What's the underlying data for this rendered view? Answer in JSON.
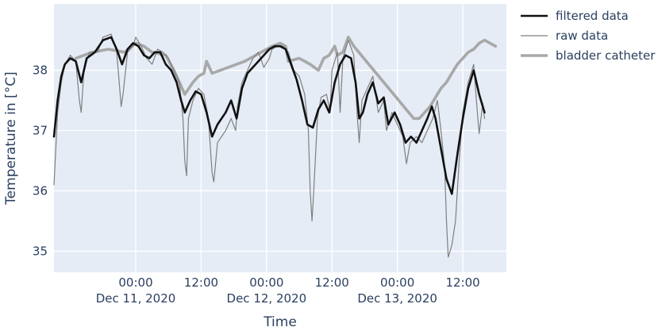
{
  "chart_data": {
    "type": "line",
    "xlabel": "Time",
    "ylabel": "Temperature in [°C]",
    "xlim": [
      "2020-12-10T09:00",
      "2020-12-13T20:00"
    ],
    "ylim": [
      34.65,
      39.1
    ],
    "grid": true,
    "legend_position": "right-top",
    "y_ticks": [
      35,
      36,
      37,
      38
    ],
    "x_ticks": [
      {
        "x": "2020-12-11T00:00",
        "time": "00:00",
        "date": "Dec 11, 2020"
      },
      {
        "x": "2020-12-11T12:00",
        "time": "12:00",
        "date": ""
      },
      {
        "x": "2020-12-12T00:00",
        "time": "00:00",
        "date": "Dec 12, 2020"
      },
      {
        "x": "2020-12-12T12:00",
        "time": "12:00",
        "date": ""
      },
      {
        "x": "2020-12-13T00:00",
        "time": "00:00",
        "date": "Dec 13, 2020"
      },
      {
        "x": "2020-12-13T12:00",
        "time": "12:00",
        "date": ""
      }
    ],
    "series": [
      {
        "name": "bladder catheter",
        "color": "#a8a8a8",
        "points": [
          [
            "2020-12-10T13:00",
            38.2
          ],
          [
            "2020-12-10T16:00",
            38.3
          ],
          [
            "2020-12-10T19:00",
            38.35
          ],
          [
            "2020-12-10T22:00",
            38.3
          ],
          [
            "2020-12-11T00:00",
            38.45
          ],
          [
            "2020-12-11T01:30",
            38.4
          ],
          [
            "2020-12-11T03:00",
            38.3
          ],
          [
            "2020-12-11T05:30",
            38.25
          ],
          [
            "2020-12-11T07:00",
            38.0
          ],
          [
            "2020-12-11T08:00",
            37.8
          ],
          [
            "2020-12-11T09:00",
            37.6
          ],
          [
            "2020-12-11T10:30",
            37.8
          ],
          [
            "2020-12-11T11:30",
            37.9
          ],
          [
            "2020-12-11T12:30",
            37.95
          ],
          [
            "2020-12-11T13:00",
            38.15
          ],
          [
            "2020-12-11T14:00",
            37.95
          ],
          [
            "2020-12-11T17:00",
            38.05
          ],
          [
            "2020-12-11T20:00",
            38.15
          ],
          [
            "2020-12-11T23:00",
            38.3
          ],
          [
            "2020-12-12T01:00",
            38.4
          ],
          [
            "2020-12-12T02:30",
            38.45
          ],
          [
            "2020-12-12T03:30",
            38.4
          ],
          [
            "2020-12-12T04:00",
            38.15
          ],
          [
            "2020-12-12T06:00",
            38.2
          ],
          [
            "2020-12-12T08:00",
            38.1
          ],
          [
            "2020-12-12T09:30",
            38.0
          ],
          [
            "2020-12-12T10:30",
            38.2
          ],
          [
            "2020-12-12T11:30",
            38.25
          ],
          [
            "2020-12-12T12:30",
            38.4
          ],
          [
            "2020-12-12T13:00",
            38.25
          ],
          [
            "2020-12-12T14:00",
            38.3
          ],
          [
            "2020-12-12T15:00",
            38.55
          ],
          [
            "2020-12-12T16:00",
            38.4
          ],
          [
            "2020-12-13T03:00",
            37.2
          ],
          [
            "2020-12-13T04:00",
            37.2
          ],
          [
            "2020-12-13T06:00",
            37.4
          ],
          [
            "2020-12-13T07:00",
            37.55
          ],
          [
            "2020-12-13T08:00",
            37.7
          ],
          [
            "2020-12-13T09:00",
            37.8
          ],
          [
            "2020-12-13T10:00",
            37.95
          ],
          [
            "2020-12-13T11:00",
            38.1
          ],
          [
            "2020-12-13T12:00",
            38.2
          ],
          [
            "2020-12-13T13:00",
            38.3
          ],
          [
            "2020-12-13T14:00",
            38.35
          ],
          [
            "2020-12-13T15:00",
            38.45
          ],
          [
            "2020-12-13T16:00",
            38.5
          ],
          [
            "2020-12-13T17:00",
            38.45
          ],
          [
            "2020-12-13T18:00",
            38.4
          ]
        ]
      },
      {
        "name": "raw data",
        "color": "#7f7f7f",
        "points": [
          [
            "2020-12-10T09:00",
            36.1
          ],
          [
            "2020-12-10T09:40",
            37.3
          ],
          [
            "2020-12-10T10:20",
            37.8
          ],
          [
            "2020-12-10T11:00",
            38.1
          ],
          [
            "2020-12-10T12:00",
            38.25
          ],
          [
            "2020-12-10T13:00",
            38.15
          ],
          [
            "2020-12-10T13:40",
            37.5
          ],
          [
            "2020-12-10T14:00",
            37.3
          ],
          [
            "2020-12-10T14:30",
            38.0
          ],
          [
            "2020-12-10T15:30",
            38.3
          ],
          [
            "2020-12-10T17:00",
            38.3
          ],
          [
            "2020-12-10T18:00",
            38.55
          ],
          [
            "2020-12-10T19:30",
            38.6
          ],
          [
            "2020-12-10T20:30",
            38.3
          ],
          [
            "2020-12-10T21:20",
            37.4
          ],
          [
            "2020-12-10T21:40",
            37.6
          ],
          [
            "2020-12-10T22:30",
            38.3
          ],
          [
            "2020-12-10T23:30",
            38.4
          ],
          [
            "2020-12-11T00:00",
            38.55
          ],
          [
            "2020-12-11T01:00",
            38.4
          ],
          [
            "2020-12-11T02:00",
            38.2
          ],
          [
            "2020-12-11T03:00",
            38.1
          ],
          [
            "2020-12-11T04:00",
            38.35
          ],
          [
            "2020-12-11T05:00",
            38.3
          ],
          [
            "2020-12-11T06:00",
            38.2
          ],
          [
            "2020-12-11T07:00",
            38.0
          ],
          [
            "2020-12-11T08:00",
            37.8
          ],
          [
            "2020-12-11T08:40",
            37.2
          ],
          [
            "2020-12-11T09:00",
            36.5
          ],
          [
            "2020-12-11T09:20",
            36.25
          ],
          [
            "2020-12-11T09:40",
            37.2
          ],
          [
            "2020-12-11T10:30",
            37.5
          ],
          [
            "2020-12-11T11:30",
            37.7
          ],
          [
            "2020-12-11T12:30",
            37.6
          ],
          [
            "2020-12-11T13:20",
            37.2
          ],
          [
            "2020-12-11T14:00",
            36.3
          ],
          [
            "2020-12-11T14:20",
            36.15
          ],
          [
            "2020-12-11T15:00",
            36.8
          ],
          [
            "2020-12-11T16:30",
            37.0
          ],
          [
            "2020-12-11T17:30",
            37.2
          ],
          [
            "2020-12-11T18:20",
            37.0
          ],
          [
            "2020-12-11T18:40",
            37.4
          ],
          [
            "2020-12-11T19:30",
            37.8
          ],
          [
            "2020-12-11T20:30",
            38.0
          ],
          [
            "2020-12-11T21:30",
            38.2
          ],
          [
            "2020-12-11T22:30",
            38.3
          ],
          [
            "2020-12-11T23:30",
            38.05
          ],
          [
            "2020-12-12T00:30",
            38.2
          ],
          [
            "2020-12-12T01:00",
            38.35
          ],
          [
            "2020-12-12T02:00",
            38.4
          ],
          [
            "2020-12-12T03:00",
            38.4
          ],
          [
            "2020-12-12T04:00",
            38.3
          ],
          [
            "2020-12-12T05:00",
            38.0
          ],
          [
            "2020-12-12T06:00",
            37.9
          ],
          [
            "2020-12-12T07:00",
            37.6
          ],
          [
            "2020-12-12T07:40",
            37.0
          ],
          [
            "2020-12-12T08:00",
            36.0
          ],
          [
            "2020-12-12T08:20",
            35.5
          ],
          [
            "2020-12-12T08:40",
            36.0
          ],
          [
            "2020-12-12T09:20",
            37.2
          ],
          [
            "2020-12-12T10:00",
            37.55
          ],
          [
            "2020-12-12T11:00",
            37.6
          ],
          [
            "2020-12-12T11:40",
            37.3
          ],
          [
            "2020-12-12T12:00",
            38.0
          ],
          [
            "2020-12-12T13:00",
            38.3
          ],
          [
            "2020-12-12T13:30",
            37.3
          ],
          [
            "2020-12-12T14:00",
            38.2
          ],
          [
            "2020-12-12T15:00",
            38.5
          ],
          [
            "2020-12-12T16:00",
            38.25
          ],
          [
            "2020-12-12T16:40",
            37.2
          ],
          [
            "2020-12-12T17:00",
            36.8
          ],
          [
            "2020-12-12T17:30",
            37.5
          ],
          [
            "2020-12-12T18:30",
            37.7
          ],
          [
            "2020-12-12T19:30",
            37.9
          ],
          [
            "2020-12-12T20:30",
            37.3
          ],
          [
            "2020-12-12T21:30",
            37.5
          ],
          [
            "2020-12-12T22:00",
            37.0
          ],
          [
            "2020-12-12T23:00",
            37.3
          ],
          [
            "2020-12-13T00:00",
            37.1
          ],
          [
            "2020-12-13T01:00",
            36.9
          ],
          [
            "2020-12-13T01:40",
            36.45
          ],
          [
            "2020-12-13T02:20",
            36.8
          ],
          [
            "2020-12-13T03:30",
            36.9
          ],
          [
            "2020-12-13T04:30",
            36.8
          ],
          [
            "2020-12-13T05:30",
            37.0
          ],
          [
            "2020-12-13T06:30",
            37.2
          ],
          [
            "2020-12-13T07:20",
            37.5
          ],
          [
            "2020-12-13T08:00",
            37.0
          ],
          [
            "2020-12-13T08:40",
            36.4
          ],
          [
            "2020-12-13T09:00",
            35.5
          ],
          [
            "2020-12-13T09:20",
            34.9
          ],
          [
            "2020-12-13T10:00",
            35.1
          ],
          [
            "2020-12-13T10:40",
            35.5
          ],
          [
            "2020-12-13T11:20",
            36.5
          ],
          [
            "2020-12-13T12:00",
            37.3
          ],
          [
            "2020-12-13T13:00",
            37.8
          ],
          [
            "2020-12-13T14:00",
            38.1
          ],
          [
            "2020-12-13T14:40",
            37.3
          ],
          [
            "2020-12-13T15:00",
            36.95
          ],
          [
            "2020-12-13T15:40",
            37.45
          ],
          [
            "2020-12-13T16:00",
            37.2
          ]
        ]
      },
      {
        "name": "filtered data",
        "color": "#111111",
        "points": [
          [
            "2020-12-10T09:00",
            36.9
          ],
          [
            "2020-12-10T09:40",
            37.5
          ],
          [
            "2020-12-10T10:20",
            37.9
          ],
          [
            "2020-12-10T11:00",
            38.1
          ],
          [
            "2020-12-10T12:00",
            38.2
          ],
          [
            "2020-12-10T13:00",
            38.15
          ],
          [
            "2020-12-10T14:00",
            37.8
          ],
          [
            "2020-12-10T15:00",
            38.2
          ],
          [
            "2020-12-10T16:30",
            38.3
          ],
          [
            "2020-12-10T18:00",
            38.5
          ],
          [
            "2020-12-10T19:30",
            38.55
          ],
          [
            "2020-12-10T20:30",
            38.35
          ],
          [
            "2020-12-10T21:30",
            38.1
          ],
          [
            "2020-12-10T22:30",
            38.35
          ],
          [
            "2020-12-10T23:30",
            38.45
          ],
          [
            "2020-12-11T00:30",
            38.4
          ],
          [
            "2020-12-11T01:30",
            38.25
          ],
          [
            "2020-12-11T02:30",
            38.2
          ],
          [
            "2020-12-11T03:30",
            38.3
          ],
          [
            "2020-12-11T04:30",
            38.3
          ],
          [
            "2020-12-11T05:30",
            38.1
          ],
          [
            "2020-12-11T06:30",
            38.0
          ],
          [
            "2020-12-11T07:30",
            37.8
          ],
          [
            "2020-12-11T08:20",
            37.5
          ],
          [
            "2020-12-11T09:00",
            37.3
          ],
          [
            "2020-12-11T10:00",
            37.5
          ],
          [
            "2020-12-11T11:00",
            37.65
          ],
          [
            "2020-12-11T12:00",
            37.6
          ],
          [
            "2020-12-11T13:00",
            37.3
          ],
          [
            "2020-12-11T14:00",
            36.9
          ],
          [
            "2020-12-11T15:00",
            37.1
          ],
          [
            "2020-12-11T16:30",
            37.3
          ],
          [
            "2020-12-11T17:30",
            37.5
          ],
          [
            "2020-12-11T18:30",
            37.2
          ],
          [
            "2020-12-11T19:30",
            37.7
          ],
          [
            "2020-12-11T20:30",
            37.95
          ],
          [
            "2020-12-11T22:00",
            38.1
          ],
          [
            "2020-12-11T23:30",
            38.25
          ],
          [
            "2020-12-12T00:30",
            38.35
          ],
          [
            "2020-12-12T01:30",
            38.4
          ],
          [
            "2020-12-12T02:30",
            38.4
          ],
          [
            "2020-12-12T03:30",
            38.35
          ],
          [
            "2020-12-12T04:30",
            38.1
          ],
          [
            "2020-12-12T05:30",
            37.85
          ],
          [
            "2020-12-12T06:30",
            37.5
          ],
          [
            "2020-12-12T07:30",
            37.1
          ],
          [
            "2020-12-12T08:30",
            37.05
          ],
          [
            "2020-12-12T09:30",
            37.35
          ],
          [
            "2020-12-12T10:30",
            37.5
          ],
          [
            "2020-12-12T11:30",
            37.3
          ],
          [
            "2020-12-12T12:30",
            37.8
          ],
          [
            "2020-12-12T13:30",
            38.1
          ],
          [
            "2020-12-12T14:30",
            38.25
          ],
          [
            "2020-12-12T15:30",
            38.2
          ],
          [
            "2020-12-12T16:20",
            37.8
          ],
          [
            "2020-12-12T17:00",
            37.2
          ],
          [
            "2020-12-12T17:40",
            37.3
          ],
          [
            "2020-12-12T18:30",
            37.6
          ],
          [
            "2020-12-12T19:30",
            37.8
          ],
          [
            "2020-12-12T20:30",
            37.45
          ],
          [
            "2020-12-12T21:30",
            37.55
          ],
          [
            "2020-12-12T22:20",
            37.1
          ],
          [
            "2020-12-12T23:30",
            37.3
          ],
          [
            "2020-12-13T00:30",
            37.1
          ],
          [
            "2020-12-13T01:30",
            36.8
          ],
          [
            "2020-12-13T02:30",
            36.9
          ],
          [
            "2020-12-13T03:30",
            36.8
          ],
          [
            "2020-12-13T04:30",
            37.0
          ],
          [
            "2020-12-13T05:30",
            37.2
          ],
          [
            "2020-12-13T06:20",
            37.4
          ],
          [
            "2020-12-13T07:00",
            37.2
          ],
          [
            "2020-12-13T08:00",
            36.7
          ],
          [
            "2020-12-13T09:00",
            36.2
          ],
          [
            "2020-12-13T10:00",
            35.95
          ],
          [
            "2020-12-13T11:00",
            36.6
          ],
          [
            "2020-12-13T12:00",
            37.2
          ],
          [
            "2020-12-13T13:00",
            37.7
          ],
          [
            "2020-12-13T14:00",
            38.0
          ],
          [
            "2020-12-13T15:00",
            37.6
          ],
          [
            "2020-12-13T16:00",
            37.3
          ]
        ]
      }
    ]
  }
}
